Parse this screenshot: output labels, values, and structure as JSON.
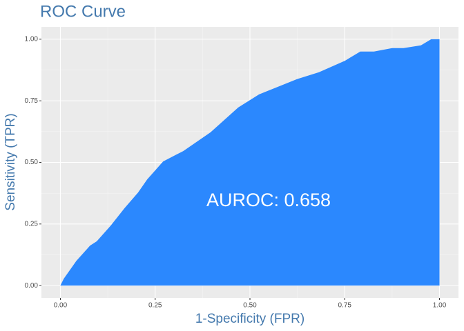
{
  "chart_data": {
    "type": "area",
    "title": "ROC Curve",
    "xlabel": "1-Specificity (FPR)",
    "ylabel": "Sensitivity (TPR)",
    "annotation": "AUROC: 0.658",
    "x": [
      0,
      0.009,
      0.042,
      0.078,
      0.096,
      0.133,
      0.169,
      0.205,
      0.229,
      0.271,
      0.324,
      0.396,
      0.469,
      0.524,
      0.624,
      0.682,
      0.751,
      0.791,
      0.827,
      0.875,
      0.905,
      0.951,
      0.978,
      1
    ],
    "values": [
      0,
      0.028,
      0.1,
      0.162,
      0.18,
      0.244,
      0.314,
      0.378,
      0.431,
      0.504,
      0.546,
      0.622,
      0.723,
      0.776,
      0.838,
      0.866,
      0.913,
      0.95,
      0.95,
      0.964,
      0.964,
      0.975,
      1,
      1
    ],
    "color": "#2b88fe",
    "xlim": [
      -0.05,
      1.05
    ],
    "ylim": [
      -0.05,
      1.05
    ],
    "xticks": [
      {
        "value": 0,
        "label": "0.00"
      },
      {
        "value": 0.25,
        "label": "0.25"
      },
      {
        "value": 0.5,
        "label": "0.50"
      },
      {
        "value": 0.75,
        "label": "0.75"
      },
      {
        "value": 1,
        "label": "1.00"
      }
    ],
    "yticks": [
      {
        "value": 0,
        "label": "0.00"
      },
      {
        "value": 0.25,
        "label": "0.25"
      },
      {
        "value": 0.5,
        "label": "0.50"
      },
      {
        "value": 0.75,
        "label": "0.75"
      },
      {
        "value": 1,
        "label": "1.00"
      }
    ],
    "xminor": [
      0.125,
      0.375,
      0.625,
      0.875
    ],
    "yminor": [
      0.125,
      0.375,
      0.625,
      0.875
    ],
    "grid": true
  }
}
